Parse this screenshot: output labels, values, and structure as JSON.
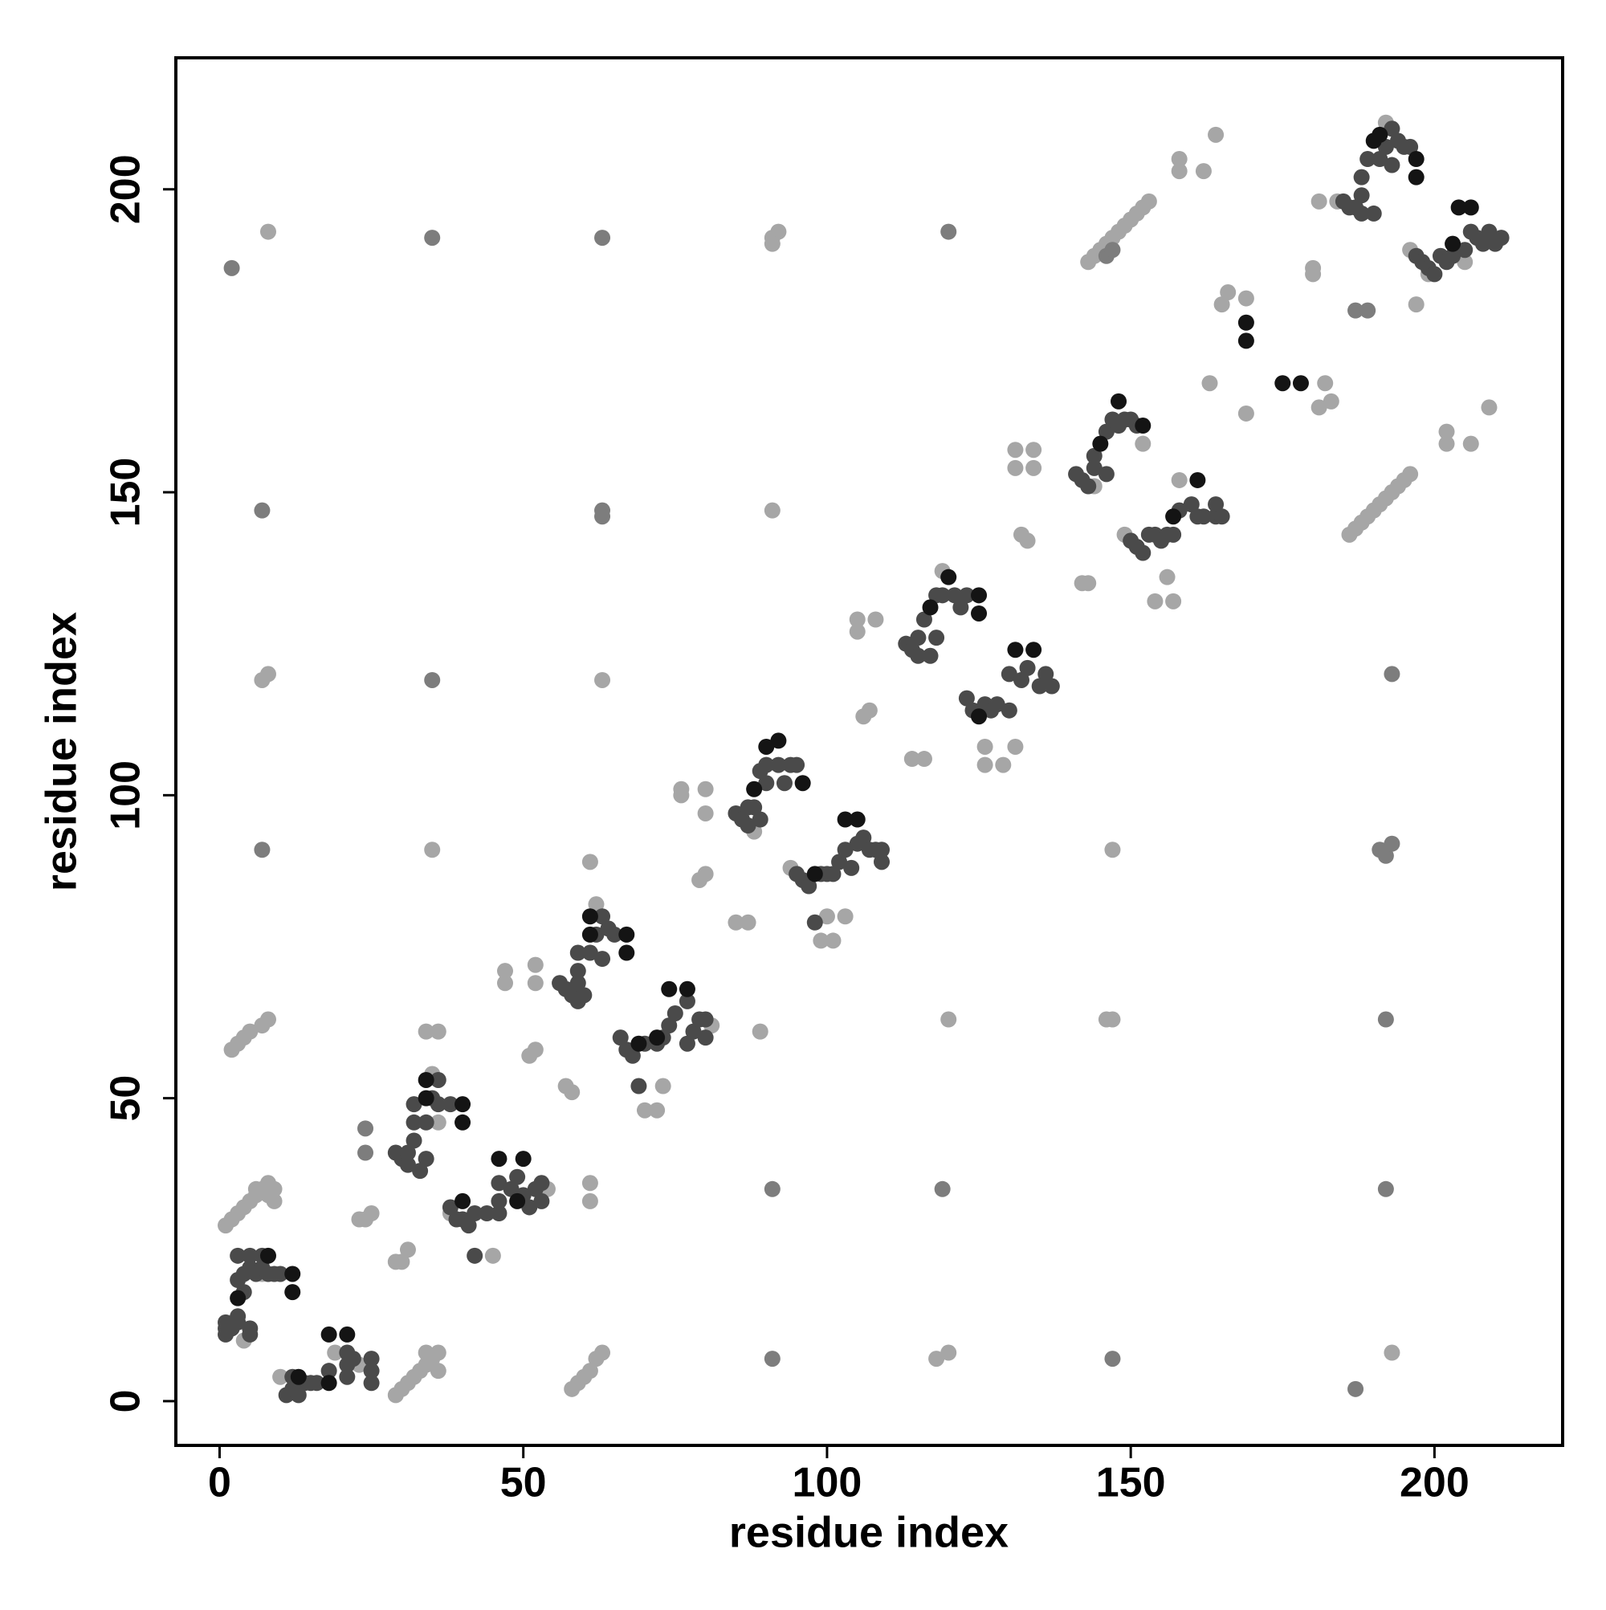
{
  "chart_data": {
    "type": "scatter",
    "xlabel": "residue index",
    "ylabel": "residue index",
    "xlim": [
      -7.2,
      221.1
    ],
    "ylim": [
      -7.3,
      221.7
    ],
    "xticks": [
      0,
      50,
      100,
      150,
      200
    ],
    "yticks": [
      0,
      50,
      100,
      150,
      200
    ],
    "grid": false,
    "series": [
      {
        "color": "#a6a6a6",
        "x": [
          8,
          91,
          92,
          91,
          91,
          8,
          7,
          63,
          35,
          2,
          3,
          4,
          5,
          7,
          8,
          120,
          146,
          147,
          61,
          61,
          147,
          118,
          120,
          193,
          58,
          59,
          60,
          61,
          62,
          63,
          143,
          144,
          145,
          146,
          147,
          148,
          149,
          150,
          151,
          152,
          153,
          158,
          158,
          162,
          164,
          186,
          187,
          188,
          189,
          190,
          191,
          192,
          193,
          194,
          195,
          196,
          202,
          202,
          206,
          209,
          163,
          165,
          166,
          169,
          181,
          182,
          183,
          169,
          180,
          180,
          181,
          197,
          199,
          4,
          7,
          1,
          2,
          3,
          4,
          5,
          6,
          6,
          7,
          8,
          8,
          9,
          9,
          10,
          19,
          23,
          29,
          30,
          31,
          32,
          33,
          34,
          34,
          35,
          36,
          36,
          23,
          24,
          25,
          29,
          30,
          31,
          34,
          36,
          35,
          36,
          38,
          45,
          54,
          57,
          58,
          62,
          52,
          51,
          47,
          47,
          52,
          52,
          61,
          89,
          70,
          72,
          73,
          81,
          88,
          76,
          76,
          80,
          80,
          79,
          80,
          85,
          87,
          94,
          99,
          100,
          101,
          103,
          105,
          105,
          108,
          114,
          116,
          106,
          107,
          119,
          126,
          129,
          126,
          131,
          131,
          134,
          131,
          134,
          132,
          133,
          142,
          143,
          144,
          152,
          149,
          154,
          156,
          157,
          158,
          184,
          192,
          196,
          205
        ],
        "y": [
          193,
          192,
          193,
          191,
          147,
          120,
          119,
          119,
          91,
          58,
          59,
          60,
          61,
          62,
          63,
          63,
          63,
          63,
          36,
          33,
          91,
          7,
          8,
          8,
          2,
          3,
          4,
          5,
          7,
          8,
          188,
          189,
          190,
          191,
          192,
          193,
          194,
          195,
          196,
          197,
          198,
          203,
          205,
          203,
          209,
          143,
          144,
          145,
          146,
          147,
          148,
          149,
          150,
          151,
          152,
          153,
          158,
          160,
          158,
          164,
          168,
          181,
          183,
          182,
          164,
          168,
          165,
          163,
          186,
          187,
          198,
          181,
          186,
          10,
          21,
          29,
          30,
          31,
          32,
          33,
          34,
          35,
          35,
          34,
          36,
          35,
          33,
          4,
          8,
          6,
          1,
          2,
          3,
          4,
          5,
          6,
          8,
          7,
          8,
          5,
          30,
          30,
          31,
          23,
          23,
          25,
          61,
          61,
          54,
          46,
          31,
          24,
          35,
          52,
          51,
          82,
          58,
          57,
          71,
          69,
          72,
          69,
          89,
          61,
          48,
          48,
          52,
          62,
          94,
          100,
          101,
          101,
          97,
          86,
          87,
          79,
          79,
          88,
          76,
          80,
          76,
          80,
          129,
          127,
          129,
          106,
          106,
          113,
          114,
          137,
          105,
          105,
          108,
          108,
          157,
          157,
          154,
          154,
          143,
          142,
          135,
          135,
          151,
          158,
          143,
          132,
          136,
          132,
          152,
          198,
          211,
          190,
          188
        ]
      },
      {
        "color": "#7d7d7d",
        "x": [
          2,
          35,
          63,
          120,
          7,
          63,
          63,
          35,
          7,
          192,
          91,
          119,
          192,
          191,
          192,
          193,
          193,
          91,
          147,
          187,
          146,
          147,
          187,
          189,
          24,
          24
        ],
        "y": [
          187,
          192,
          192,
          193,
          147,
          147,
          146,
          119,
          91,
          63,
          35,
          35,
          35,
          91,
          90,
          92,
          120,
          7,
          7,
          2,
          189,
          190,
          180,
          180,
          45,
          41
        ]
      },
      {
        "color": "#4a4a4a",
        "x": [
          1,
          1,
          1,
          2,
          3,
          3,
          3,
          3,
          4,
          4,
          5,
          5,
          5,
          5,
          6,
          7,
          7,
          8,
          9,
          10,
          11,
          12,
          12,
          13,
          14,
          15,
          16,
          18,
          21,
          21,
          21,
          22,
          25,
          25,
          25,
          29,
          30,
          31,
          31,
          32,
          32,
          32,
          33,
          34,
          34,
          35,
          36,
          36,
          38,
          38,
          39,
          40,
          41,
          42,
          42,
          44,
          46,
          46,
          46,
          48,
          49,
          50,
          51,
          52,
          53,
          53,
          56,
          57,
          58,
          59,
          59,
          59,
          59,
          60,
          61,
          62,
          63,
          63,
          64,
          65,
          66,
          67,
          68,
          69,
          70,
          72,
          73,
          74,
          75,
          77,
          77,
          78,
          79,
          80,
          80,
          85,
          86,
          87,
          87,
          88,
          89,
          89,
          90,
          90,
          92,
          93,
          94,
          95,
          95,
          96,
          97,
          98,
          99,
          100,
          101,
          102,
          103,
          104,
          105,
          106,
          107,
          108,
          109,
          109,
          113,
          114,
          115,
          115,
          116,
          117,
          118,
          118,
          119,
          121,
          122,
          123,
          123,
          124,
          126,
          127,
          128,
          130,
          130,
          132,
          133,
          135,
          136,
          137,
          141,
          142,
          143,
          144,
          144,
          146,
          146,
          147,
          148,
          149,
          150,
          151,
          150,
          151,
          152,
          153,
          154,
          155,
          156,
          157,
          158,
          160,
          161,
          162,
          164,
          164,
          165,
          185,
          186,
          187,
          188,
          188,
          188,
          189,
          190,
          191,
          192,
          193,
          193,
          194,
          195,
          196,
          197,
          198,
          199,
          200,
          201,
          202,
          203,
          205,
          206,
          207,
          208,
          209,
          210,
          211
        ],
        "y": [
          12,
          13,
          11,
          12,
          13,
          14,
          20,
          24,
          18,
          21,
          22,
          24,
          11,
          12,
          21,
          24,
          22,
          21,
          21,
          21,
          1,
          2,
          4,
          1,
          3,
          3,
          3,
          5,
          4,
          6,
          8,
          7,
          5,
          7,
          3,
          41,
          40,
          39,
          41,
          43,
          46,
          49,
          38,
          46,
          40,
          50,
          49,
          53,
          49,
          32,
          30,
          30,
          29,
          31,
          24,
          31,
          31,
          33,
          36,
          35,
          37,
          34,
          32,
          35,
          33,
          36,
          69,
          68,
          67,
          66,
          69,
          71,
          74,
          67,
          74,
          77,
          80,
          73,
          78,
          77,
          60,
          58,
          57,
          52,
          59,
          59,
          60,
          62,
          64,
          59,
          66,
          61,
          63,
          63,
          60,
          97,
          96,
          95,
          98,
          98,
          104,
          96,
          102,
          105,
          105,
          102,
          105,
          105,
          87,
          86,
          85,
          79,
          87,
          87,
          87,
          89,
          91,
          88,
          92,
          93,
          91,
          91,
          89,
          91,
          125,
          124,
          123,
          126,
          129,
          123,
          133,
          126,
          133,
          133,
          131,
          133,
          116,
          114,
          115,
          114,
          115,
          114,
          120,
          119,
          121,
          118,
          120,
          118,
          153,
          152,
          151,
          154,
          156,
          160,
          153,
          162,
          161,
          162,
          162,
          161,
          142,
          141,
          140,
          143,
          143,
          142,
          143,
          143,
          147,
          148,
          146,
          146,
          148,
          146,
          146,
          198,
          197,
          197,
          196,
          199,
          202,
          205,
          196,
          205,
          207,
          210,
          204,
          208,
          207,
          207,
          189,
          188,
          187,
          186,
          189,
          188,
          189,
          190,
          193,
          192,
          191,
          193,
          191,
          192
        ]
      },
      {
        "color": "#141414",
        "x": [
          8,
          12,
          12,
          3,
          18,
          21,
          13,
          18,
          34,
          40,
          40,
          34,
          46,
          50,
          49,
          40,
          61,
          67,
          67,
          61,
          74,
          77,
          72,
          69,
          92,
          96,
          90,
          88,
          103,
          105,
          98,
          125,
          125,
          120,
          117,
          131,
          134,
          125,
          148,
          152,
          145,
          161,
          157,
          190,
          197,
          197,
          191,
          204,
          206,
          203,
          169,
          169,
          175,
          178
        ],
        "y": [
          24,
          21,
          18,
          17,
          11,
          11,
          4,
          3,
          53,
          49,
          46,
          50,
          40,
          40,
          33,
          33,
          80,
          77,
          74,
          77,
          68,
          68,
          60,
          59,
          109,
          102,
          108,
          101,
          96,
          96,
          87,
          133,
          130,
          136,
          131,
          124,
          124,
          113,
          165,
          161,
          158,
          152,
          146,
          208,
          205,
          202,
          209,
          197,
          197,
          191,
          178,
          175,
          168,
          168
        ]
      }
    ]
  }
}
